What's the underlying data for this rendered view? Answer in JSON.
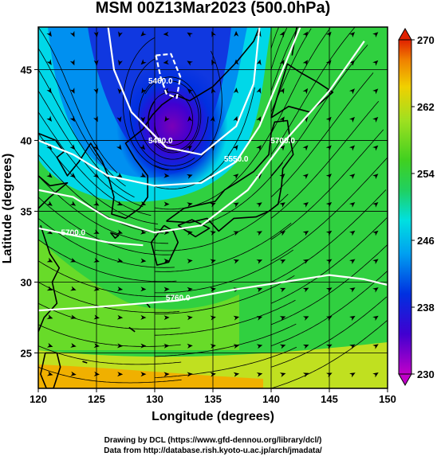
{
  "chart_data": {
    "type": "heatmap",
    "title": "MSM 00Z13Mar2023 (500.0hPa)",
    "xlabel": "Longitude (degrees)",
    "ylabel": "Latitude  (degrees)",
    "xlim": [
      120,
      150
    ],
    "ylim": [
      22.5,
      48
    ],
    "x_ticks": [
      120,
      125,
      130,
      135,
      140,
      145,
      150
    ],
    "y_ticks": [
      25,
      30,
      35,
      40,
      45
    ],
    "grid": true,
    "colorbar": {
      "min": 230,
      "max": 270,
      "ticks": [
        230,
        238,
        246,
        254,
        262,
        270
      ],
      "extend": "both",
      "colors": [
        "#c000c8",
        "#4000d0",
        "#0030e0",
        "#00a0f0",
        "#00e0e0",
        "#20d060",
        "#40d020",
        "#a0e020",
        "#f0d000",
        "#f08000",
        "#e02000"
      ]
    },
    "contours": [
      {
        "label": "5400.0",
        "label_at": [
          130.5,
          39.8
        ],
        "points": [
          [
            126,
            48
          ],
          [
            126.5,
            45
          ],
          [
            128,
            42
          ],
          [
            131,
            39.5
          ],
          [
            134,
            39
          ],
          [
            137,
            41
          ],
          [
            138.5,
            44
          ],
          [
            139,
            48
          ]
        ]
      },
      {
        "label": "5550.0",
        "label_at": [
          137,
          38.5
        ],
        "points": [
          [
            120,
            40
          ],
          [
            123,
            39
          ],
          [
            126,
            37.5
          ],
          [
            130,
            36.8
          ],
          [
            134,
            37
          ],
          [
            137,
            38.5
          ],
          [
            139,
            41
          ],
          [
            141,
            45
          ],
          [
            142.5,
            48
          ]
        ]
      },
      {
        "label": "5700.0",
        "label_at": [
          141,
          39.8
        ],
        "points": [
          [
            120,
            36.5
          ],
          [
            123,
            36
          ],
          [
            126,
            34.5
          ],
          [
            130,
            33.5
          ],
          [
            134,
            34
          ],
          [
            138,
            36.5
          ],
          [
            141,
            39.8
          ],
          [
            145,
            43.5
          ],
          [
            148,
            47
          ]
        ]
      },
      {
        "label": "5700.0",
        "label_at": [
          123,
          33.3
        ],
        "points": [
          [
            120,
            33.8
          ],
          [
            123,
            33.3
          ],
          [
            126,
            32.8
          ],
          [
            129,
            32.6
          ]
        ]
      },
      {
        "label": "5760.0",
        "label_at": [
          132,
          28.7
        ],
        "points": [
          [
            120,
            28
          ],
          [
            126,
            28.3
          ],
          [
            132,
            28.7
          ],
          [
            137,
            29.5
          ],
          [
            141,
            30
          ],
          [
            145,
            30.5
          ],
          [
            148,
            30.2
          ],
          [
            150,
            29.8
          ]
        ]
      },
      {
        "label": "5460.0",
        "label_at": [
          130.5,
          44
        ],
        "points": [
          [
            130.1,
            46
          ],
          [
            130.5,
            44.5
          ],
          [
            131,
            43.3
          ],
          [
            131.9,
            43
          ],
          [
            132.2,
            44.5
          ],
          [
            131.4,
            46.1
          ],
          [
            130.1,
            46
          ]
        ]
      }
    ],
    "credits": [
      "Drawing by DCL (https://www.gfd-dennou.org/library/dcl/)",
      "Data from http://database.rish.kyoto-u.ac.jp/arch/jmadata/"
    ]
  }
}
